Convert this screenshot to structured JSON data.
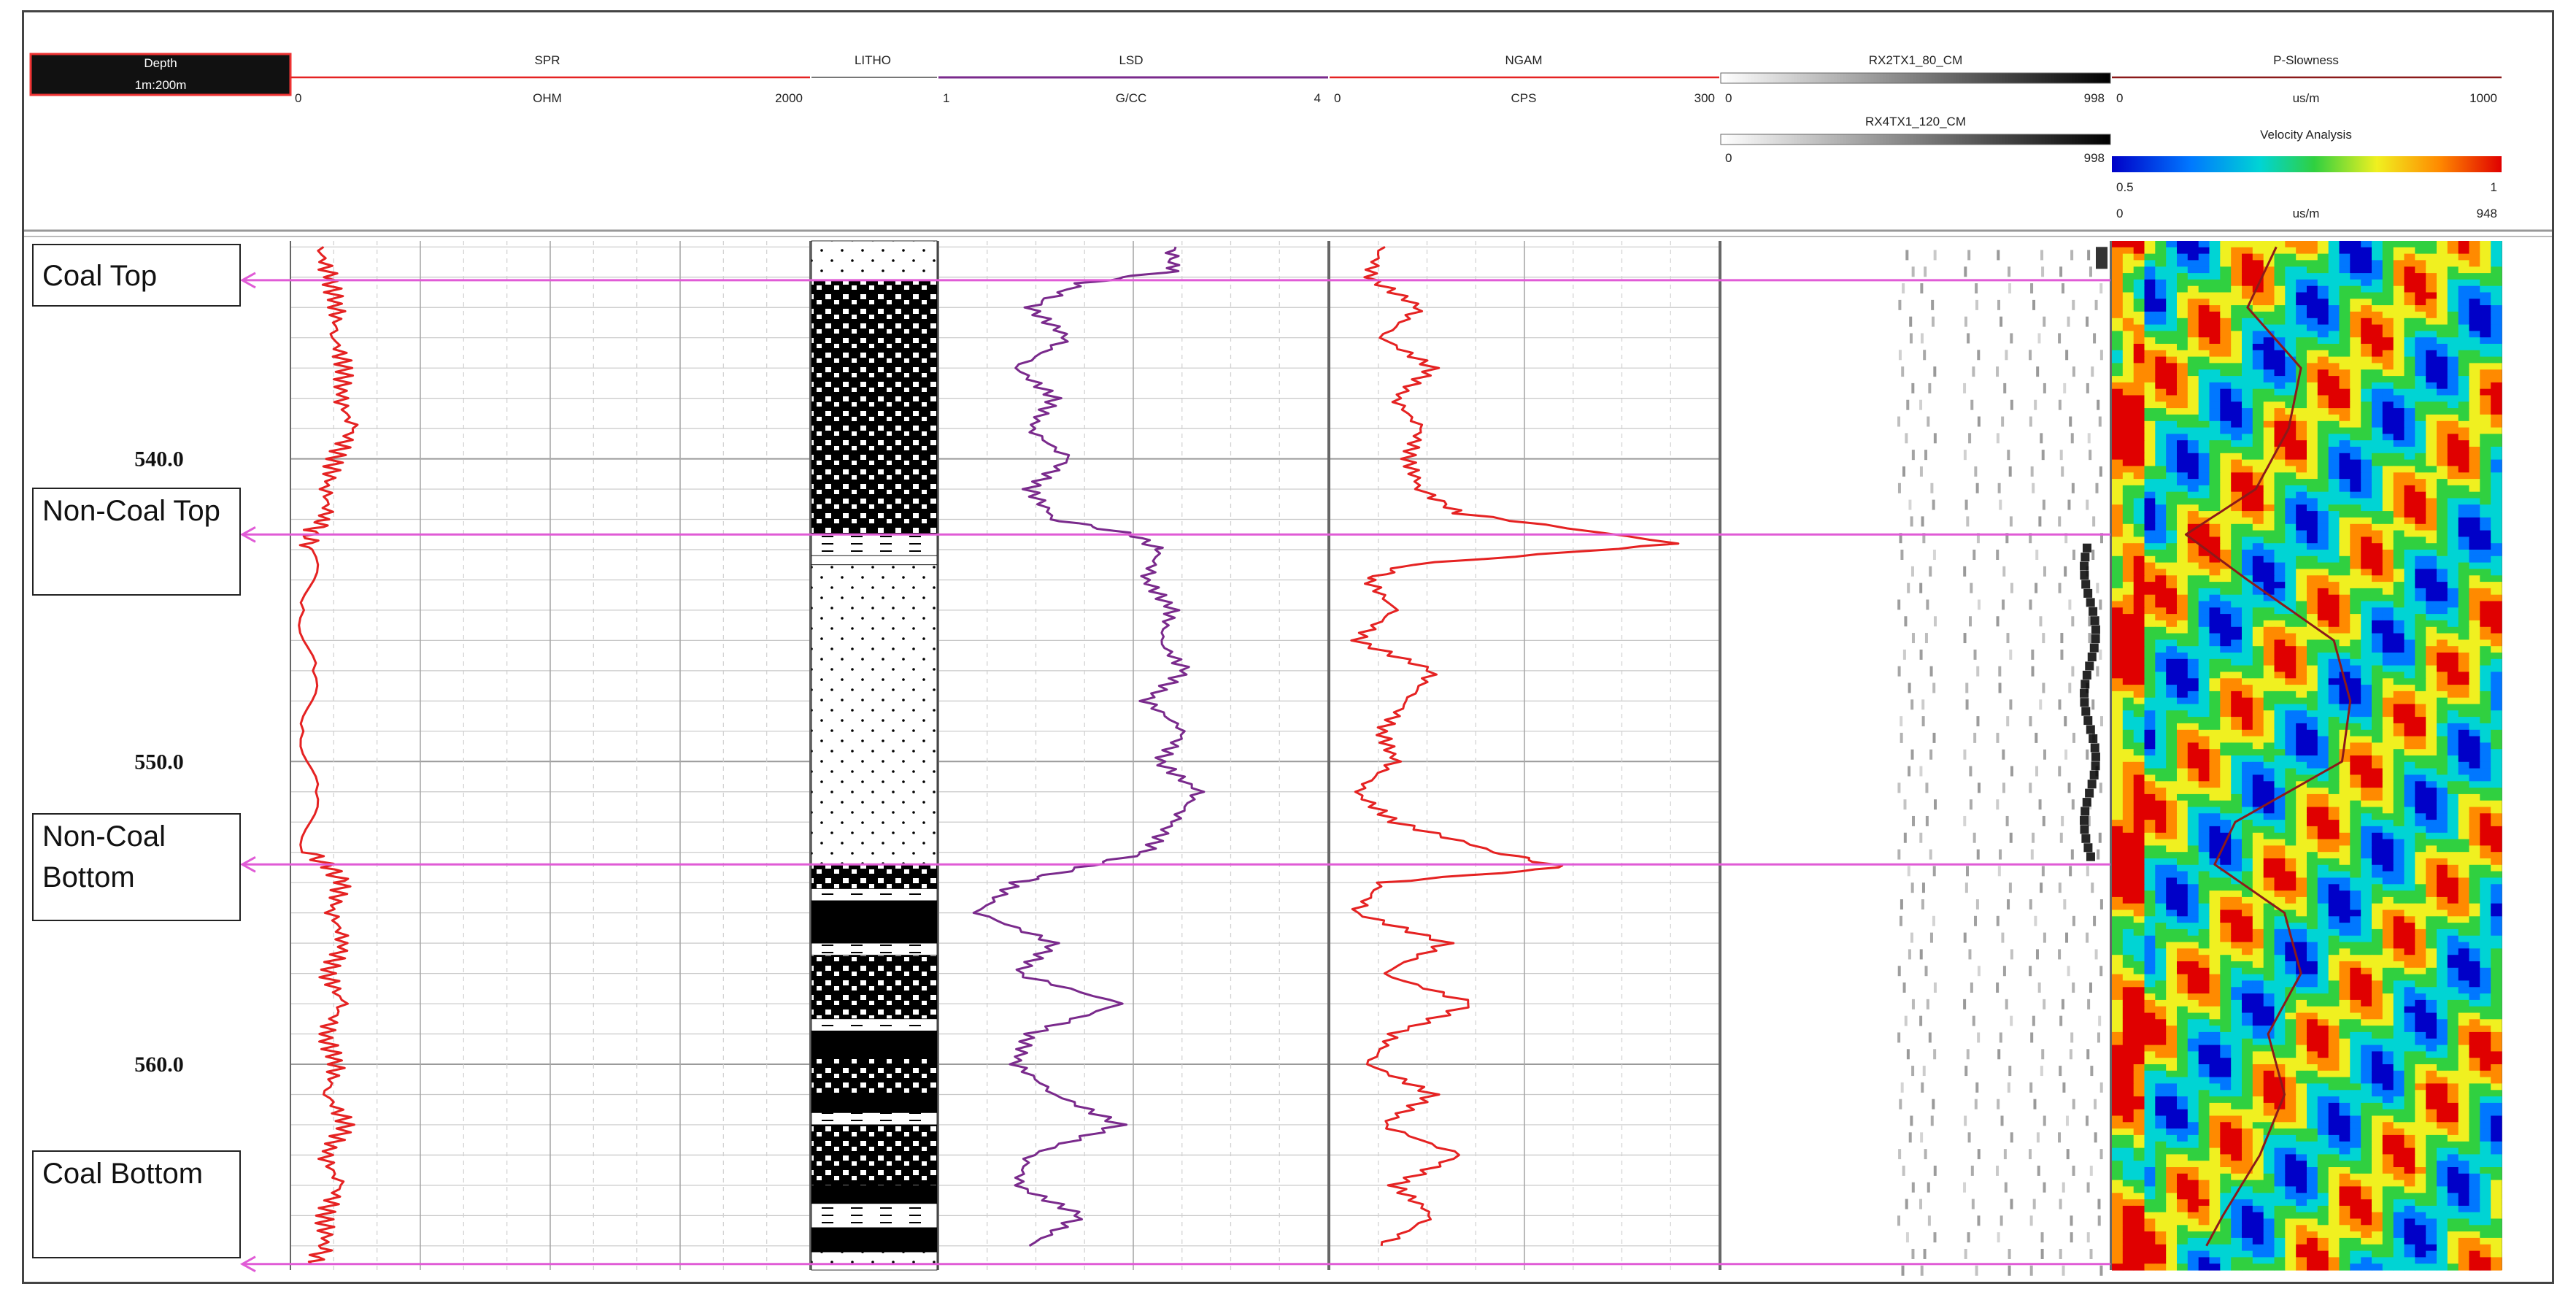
{
  "tracks": {
    "depth": {
      "label": "Depth",
      "scale": "1m:200m"
    },
    "spr": {
      "label": "SPR",
      "unit": "OHM",
      "min": "0",
      "max": "2000"
    },
    "litho": {
      "label": "LITHO"
    },
    "lsd": {
      "label": "LSD",
      "unit": "G/CC",
      "min": "1",
      "max": "4"
    },
    "ngam": {
      "label": "NGAM",
      "unit": "CPS",
      "min": "0",
      "max": "300"
    },
    "rx2": {
      "label": "RX2TX1_80_CM",
      "min": "0",
      "max": "998"
    },
    "rx4": {
      "label": "RX4TX1_120_CM",
      "min": "0",
      "max": "998"
    },
    "pslow": {
      "label": "P-Slowness",
      "unit": "us/m",
      "min": "0",
      "max": "1000"
    },
    "velocity": {
      "label": "Velocity Analysis",
      "min": "0.5",
      "max": "1"
    },
    "slow2": {
      "unit": "us/m",
      "min": "0",
      "max": "948"
    }
  },
  "depth_labels": [
    "540.0",
    "550.0",
    "560.0"
  ],
  "annotations": [
    {
      "text": "Coal Top"
    },
    {
      "text": "Non-Coal Top"
    },
    {
      "text": "Non-Coal Bottom"
    },
    {
      "text": "Coal Bottom"
    }
  ],
  "colors": {
    "spr": "#e52222",
    "lsd": "#7a2a8c",
    "ngam": "#e52222",
    "marker": "#e05bd6",
    "slowness_pick": "#8b1a1a"
  },
  "chart_data": {
    "type": "line",
    "depth_unit": "m",
    "depth_range": [
      532.8,
      566.8
    ],
    "markers": [
      {
        "name": "Coal Top",
        "depth": 534.1
      },
      {
        "name": "Non-Coal Top",
        "depth": 542.5
      },
      {
        "name": "Non-Coal Bottom",
        "depth": 553.4
      },
      {
        "name": "Coal Bottom",
        "depth": 566.6
      }
    ],
    "series": [
      {
        "name": "SPR",
        "unit": "OHM",
        "range": [
          0,
          2000
        ],
        "depth": [
          533,
          534,
          535,
          536,
          537,
          538,
          539,
          540,
          541,
          542,
          542.4,
          543,
          545,
          547,
          549,
          551,
          553,
          553.5,
          554,
          555,
          556,
          557,
          558,
          559,
          560,
          561,
          562,
          563,
          564,
          565,
          566,
          566.6
        ],
        "values": [
          110,
          150,
          180,
          170,
          210,
          190,
          240,
          170,
          140,
          140,
          80,
          70,
          70,
          65,
          75,
          70,
          75,
          150,
          200,
          160,
          210,
          140,
          200,
          130,
          180,
          140,
          220,
          130,
          190,
          130,
          140,
          80
        ]
      },
      {
        "name": "LSD",
        "unit": "G/CC",
        "range": [
          1,
          4
        ],
        "depth": [
          533,
          533.8,
          534.2,
          535,
          536,
          537,
          538,
          539,
          540,
          541,
          542,
          542.5,
          543,
          544,
          545,
          546,
          547,
          548,
          549,
          550,
          551,
          552,
          553,
          553.5,
          554,
          555,
          556,
          557,
          558,
          559,
          560,
          561,
          562,
          563,
          564,
          565,
          566
        ],
        "values": [
          2.8,
          2.8,
          2.1,
          1.7,
          2.0,
          1.6,
          1.9,
          1.7,
          2.0,
          1.7,
          1.9,
          2.5,
          2.7,
          2.6,
          2.8,
          2.7,
          2.9,
          2.6,
          2.9,
          2.7,
          3.0,
          2.8,
          2.6,
          2.1,
          1.6,
          1.3,
          1.9,
          1.6,
          2.4,
          1.7,
          1.6,
          1.9,
          2.4,
          1.7,
          1.6,
          2.1,
          1.7
        ]
      },
      {
        "name": "NGAM",
        "unit": "CPS",
        "range": [
          0,
          300
        ],
        "depth": [
          533,
          534,
          535,
          536,
          537,
          538,
          539,
          540,
          541,
          541.8,
          542.8,
          543.5,
          544,
          545,
          546,
          547,
          548,
          549,
          550,
          551,
          552,
          553,
          553.5,
          554,
          555,
          556,
          557,
          558,
          559,
          560,
          561,
          562,
          563,
          564,
          565,
          566
        ],
        "values": [
          40,
          30,
          70,
          40,
          80,
          50,
          70,
          60,
          70,
          100,
          270,
          60,
          30,
          50,
          20,
          80,
          60,
          40,
          50,
          20,
          50,
          130,
          180,
          40,
          20,
          90,
          40,
          110,
          50,
          30,
          80,
          40,
          100,
          50,
          80,
          40
        ]
      },
      {
        "name": "P-Slowness",
        "unit": "us/m",
        "range": [
          0,
          948
        ],
        "depth": [
          533,
          535,
          537,
          539,
          541,
          542.5,
          544,
          546,
          548,
          550,
          552,
          553.4,
          555,
          557,
          559,
          561,
          563,
          565,
          566
        ],
        "values": [
          400,
          330,
          460,
          430,
          350,
          180,
          330,
          540,
          580,
          560,
          300,
          250,
          420,
          460,
          380,
          420,
          360,
          270,
          230
        ]
      }
    ]
  }
}
